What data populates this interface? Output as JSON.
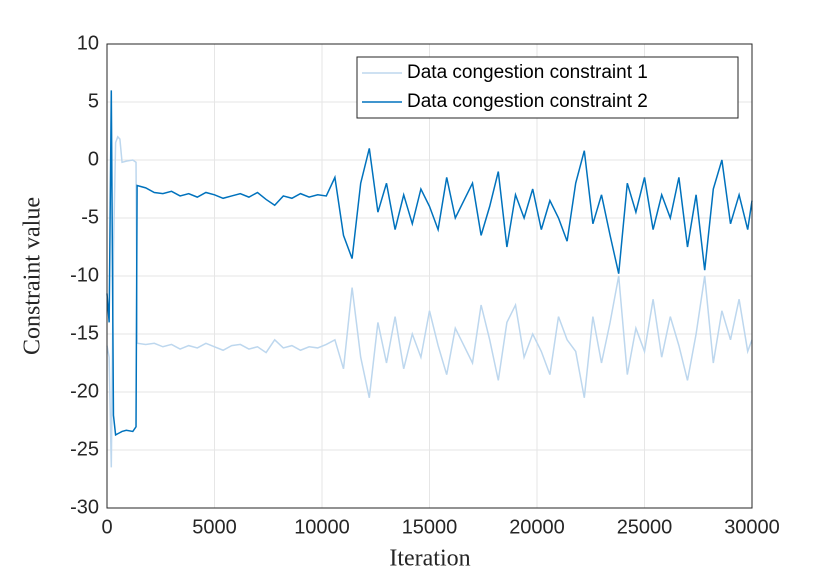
{
  "chart_data": {
    "type": "line",
    "xlabel": "Iteration",
    "ylabel": "Constraint value",
    "x": [
      0,
      100,
      200,
      300,
      400,
      500,
      600,
      700,
      900,
      1200,
      1350,
      1400,
      1800,
      2200,
      2600,
      3000,
      3400,
      3800,
      4200,
      4600,
      5000,
      5400,
      5800,
      6200,
      6600,
      7000,
      7400,
      7800,
      8200,
      8600,
      9000,
      9400,
      9800,
      10200,
      10600,
      11000,
      11400,
      11800,
      12200,
      12600,
      13000,
      13400,
      13800,
      14200,
      14600,
      15000,
      15400,
      15800,
      16200,
      16600,
      17000,
      17400,
      17800,
      18200,
      18600,
      19000,
      19400,
      19800,
      20200,
      20600,
      21000,
      21400,
      21800,
      22200,
      22600,
      23000,
      23400,
      23800,
      24200,
      24600,
      25000,
      25400,
      25800,
      26200,
      26600,
      27000,
      27400,
      27800,
      28200,
      28600,
      29000,
      29400,
      29800,
      30000
    ],
    "series": [
      {
        "name": "Data congestion constraint 1",
        "color": "#bdd7ee",
        "values": [
          -16,
          -17,
          -26.5,
          -8,
          1.5,
          2,
          1.8,
          -0.2,
          -0.1,
          0,
          -0.2,
          -15.8,
          -15.9,
          -15.8,
          -16.1,
          -15.9,
          -16.3,
          -16.0,
          -16.2,
          -15.8,
          -16.1,
          -16.4,
          -16.0,
          -15.9,
          -16.3,
          -16.1,
          -16.6,
          -15.5,
          -16.2,
          -16.0,
          -16.4,
          -16.1,
          -16.2,
          -15.9,
          -15.5,
          -18,
          -11,
          -17,
          -20.5,
          -14,
          -17.5,
          -13.5,
          -18,
          -15,
          -17,
          -13,
          -16,
          -18.5,
          -14.5,
          -16,
          -17.5,
          -12.5,
          -15.5,
          -19,
          -14,
          -12.5,
          -17,
          -15,
          -16.5,
          -18.5,
          -13.5,
          -15.5,
          -16.5,
          -20.5,
          -13.5,
          -17.5,
          -14,
          -10,
          -18.5,
          -14.5,
          -16.5,
          -12,
          -17,
          -13.5,
          -16,
          -19,
          -15,
          -10,
          -17.5,
          -13,
          -15.5,
          -12,
          -16.5,
          -15.5
        ]
      },
      {
        "name": "Data congestion constraint 2",
        "color": "#0072bd",
        "values": [
          -11.5,
          -14,
          6,
          -22,
          -23.7,
          -23.6,
          -23.5,
          -23.4,
          -23.3,
          -23.4,
          -23,
          -2.2,
          -2.4,
          -2.8,
          -2.9,
          -2.7,
          -3.1,
          -2.9,
          -3.2,
          -2.8,
          -3.0,
          -3.3,
          -3.1,
          -2.9,
          -3.2,
          -2.8,
          -3.4,
          -3.9,
          -3.1,
          -3.3,
          -2.9,
          -3.2,
          -3.0,
          -3.1,
          -1.5,
          -6.5,
          -8.5,
          -2,
          1,
          -4.5,
          -2,
          -6,
          -3,
          -5.5,
          -2.5,
          -4,
          -6,
          -1.5,
          -5,
          -3.5,
          -2,
          -6.5,
          -4,
          -1,
          -7.5,
          -3,
          -5,
          -2.5,
          -6,
          -3.5,
          -5,
          -7,
          -2,
          0.8,
          -5.5,
          -3,
          -6.5,
          -9.8,
          -2,
          -4.5,
          -1.5,
          -6,
          -3,
          -5,
          -1.5,
          -7.5,
          -3,
          -9.5,
          -2.5,
          0,
          -5.5,
          -3,
          -6,
          -3.5
        ]
      }
    ],
    "xlim": [
      0,
      30000
    ],
    "xticks": [
      0,
      5000,
      10000,
      15000,
      20000,
      25000,
      30000
    ],
    "ylim": [
      -30,
      10
    ],
    "yticks": [
      -30,
      -25,
      -20,
      -15,
      -10,
      -5,
      0,
      5,
      10
    ],
    "grid": true,
    "legend": "upper right"
  }
}
